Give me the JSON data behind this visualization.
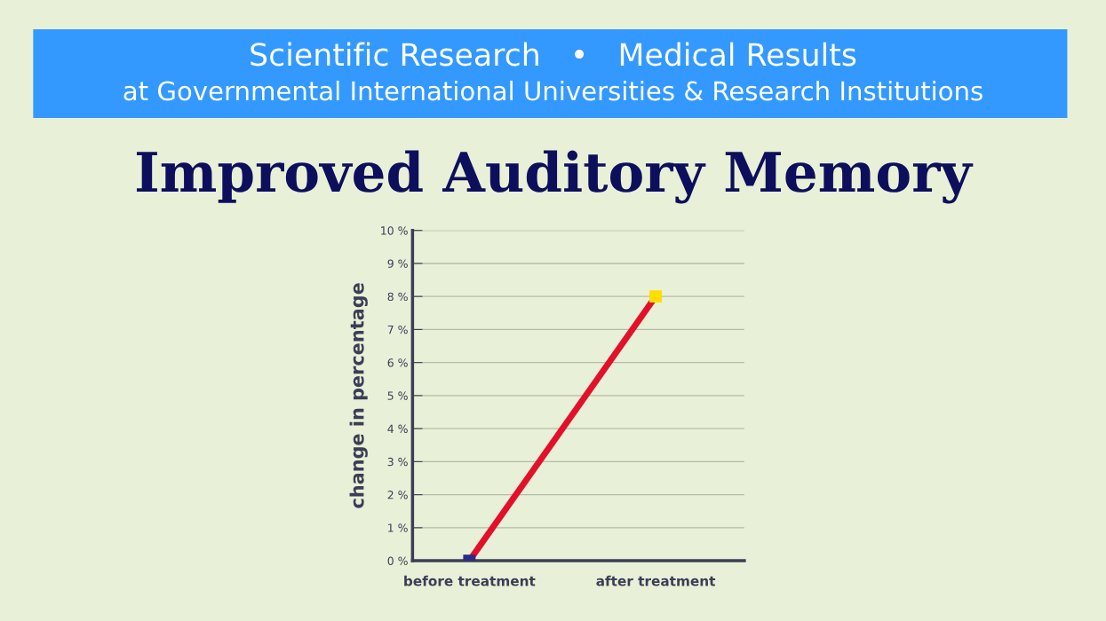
{
  "chart_data": {
    "type": "line",
    "title": "Improved Auditory Memory",
    "annotations": [
      "Scientific Research   •   Medical Results",
      "at Governmental International Universities & Research Institutions"
    ],
    "ylabel": "change in percentage",
    "categories": [
      "before treatment",
      "after treatment"
    ],
    "series": [
      {
        "color": "#e3102a",
        "colors": [
          "#2e2a85",
          "#ffdd00"
        ],
        "values": [
          0,
          8
        ]
      }
    ],
    "ylim": [
      0,
      10
    ],
    "yticks": [
      {
        "value": 0,
        "label": "0 %"
      },
      {
        "value": 1,
        "label": "1 %"
      },
      {
        "value": 2,
        "label": "2 %"
      },
      {
        "value": 3,
        "label": "3 %"
      },
      {
        "value": 4,
        "label": "4 %"
      },
      {
        "value": 5,
        "label": "5 %"
      },
      {
        "value": 6,
        "label": "6 %"
      },
      {
        "value": 7,
        "label": "7 %"
      },
      {
        "value": 8,
        "label": "8 %"
      },
      {
        "value": 9,
        "label": "9 %"
      },
      {
        "value": 10,
        "label": "10 %"
      }
    ],
    "grid": "y",
    "marker": "square",
    "line_style": "solid"
  }
}
